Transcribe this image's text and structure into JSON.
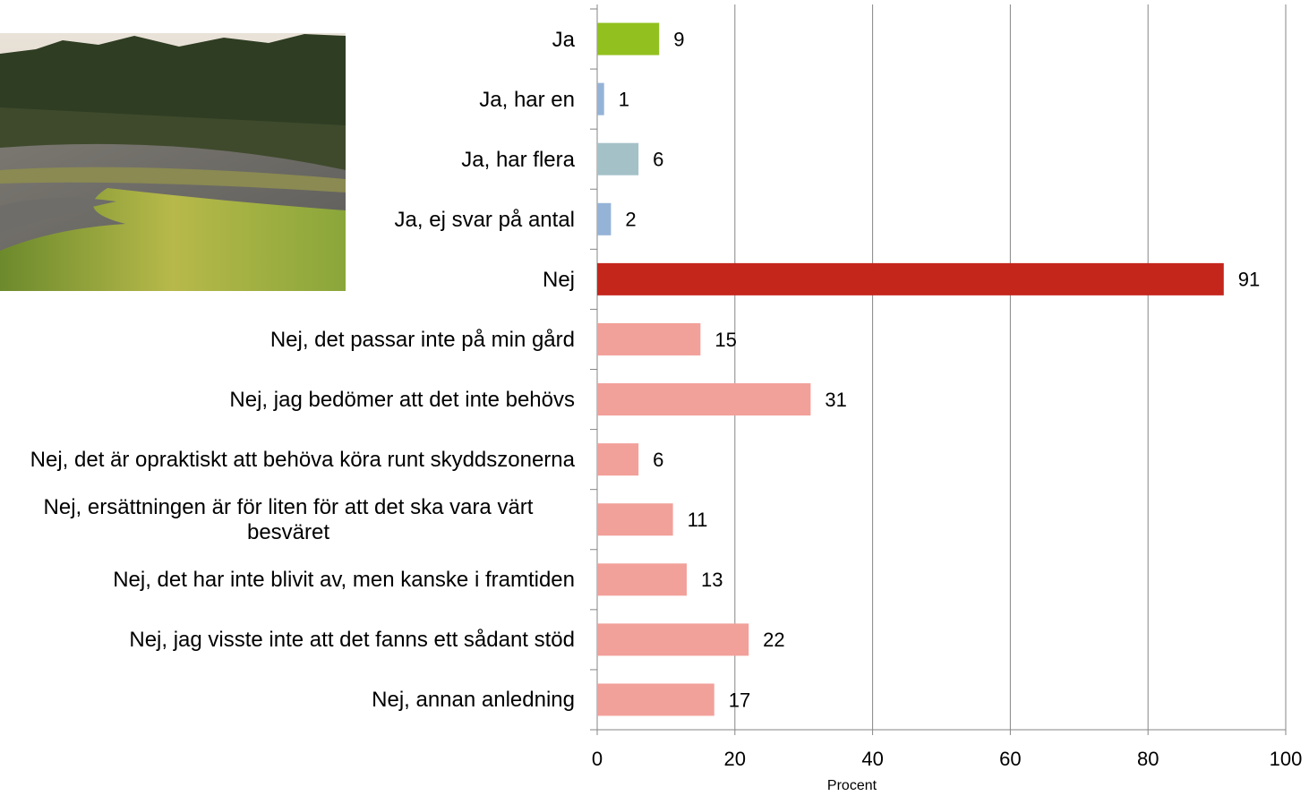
{
  "chart_data": {
    "type": "barh",
    "categories": [
      "Ja",
      "Ja, har en",
      "Ja, har flera",
      "Ja, ej svar på antal",
      "Nej",
      "Nej, det passar inte på min gård",
      "Nej, jag bedömer att det inte behövs",
      "Nej, det är opraktiskt att behöva köra runt skyddszonerna",
      "Nej, ersättningen är för liten för att det ska vara värt besväret",
      "Nej, det har inte blivit av, men kanske i framtiden",
      "Nej, jag visste inte att det fanns ett sådant stöd",
      "Nej, annan anledning"
    ],
    "values": [
      9,
      1,
      6,
      2,
      91,
      15,
      31,
      6,
      11,
      13,
      22,
      17
    ],
    "colors": [
      "#92c01f",
      "#95b3d7",
      "#a5c1c8",
      "#95b3d7",
      "#c4261c",
      "#f2a09a",
      "#f2a09a",
      "#f2a09a",
      "#f2a09a",
      "#f2a09a",
      "#f2a09a",
      "#f2a09a"
    ],
    "xlabel": "Procent",
    "xlim": [
      0,
      100
    ],
    "xticks": [
      0,
      20,
      40,
      60,
      80,
      100
    ],
    "grid": true
  }
}
